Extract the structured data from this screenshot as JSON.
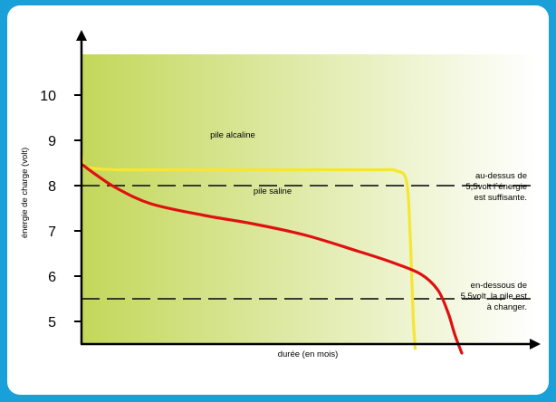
{
  "colors": {
    "frame": "#1aa0d8",
    "gradient_start": "#c3d75a",
    "gradient_end": "#ffffff",
    "alkaline": "#f5e632",
    "saline": "#e01010",
    "threshold_line": "#222222"
  },
  "chart_data": {
    "type": "line",
    "title": "",
    "xlabel": "durée (en mois)",
    "ylabel": "énergie de charge (volt)",
    "ylim": [
      4,
      11
    ],
    "y_ticks": [
      "5",
      "6",
      "7",
      "8",
      "9",
      "10"
    ],
    "grid": false,
    "series": [
      {
        "name": "pile alcaline",
        "color": "#f5e632",
        "points": [
          [
            0.0,
            8.7
          ],
          [
            0.5,
            8.5
          ],
          [
            1.5,
            8.4
          ],
          [
            10,
            8.35
          ],
          [
            20,
            8.35
          ],
          [
            40,
            8.35
          ],
          [
            60,
            8.35
          ],
          [
            85,
            8.35
          ],
          [
            91,
            8.33
          ],
          [
            94,
            8.1
          ],
          [
            95,
            7.0
          ],
          [
            95.5,
            6.0
          ],
          [
            96,
            5.0
          ],
          [
            96.5,
            4.4
          ]
        ]
      },
      {
        "name": "pile saline",
        "color": "#e01010",
        "points": [
          [
            0.5,
            8.45
          ],
          [
            4,
            8.25
          ],
          [
            10,
            7.95
          ],
          [
            20,
            7.6
          ],
          [
            35,
            7.35
          ],
          [
            50,
            7.15
          ],
          [
            65,
            6.9
          ],
          [
            80,
            6.55
          ],
          [
            90,
            6.3
          ],
          [
            98,
            6.05
          ],
          [
            103,
            5.7
          ],
          [
            106,
            5.2
          ],
          [
            108,
            4.7
          ],
          [
            110,
            4.3
          ]
        ]
      }
    ],
    "thresholds": [
      8.0,
      5.5
    ],
    "x_range": [
      0,
      132
    ],
    "annotations": {
      "alkaline_label": "pile alcaline",
      "saline_label": "pile saline",
      "above_threshold": [
        "au-dessus de",
        "5,5volt l´énergie",
        "est suffisante."
      ],
      "below_threshold": [
        "en-dessous de",
        "5,5volt, la pile est",
        "à changer."
      ]
    }
  }
}
